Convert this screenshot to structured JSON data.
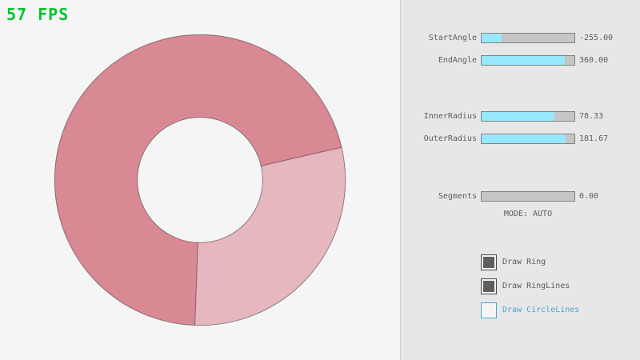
{
  "fps": "57 FPS",
  "colors": {
    "canvas": "#f5f5f5",
    "panel": "#e7e7e7",
    "text": "#5c5c5c",
    "fps": "#00c32c",
    "slider_fill": "#97e8ff",
    "slider_track": "#c5c5c5",
    "slider_border": "#838383",
    "ring_overlap": "#d98994",
    "ring_single": "#e6b7be",
    "ring_line": "#00000066",
    "accent_blue": "#4ba6d5",
    "check_fill": "#5f5f5f",
    "check_border": "#4a4a4a"
  },
  "controls": {
    "sliders": [
      {
        "label": "StartAngle",
        "value": "-255.00",
        "fill": 21.7
      },
      {
        "label": "EndAngle",
        "value": "360.00",
        "fill": 90.0
      },
      {
        "label": "InnerRadius",
        "value": "78.33",
        "fill": 78.3
      },
      {
        "label": "OuterRadius",
        "value": "181.67",
        "fill": 90.8
      },
      {
        "label": "Segments",
        "value": "0.00",
        "fill": 0
      }
    ],
    "mode_text": "MODE: AUTO",
    "checkboxes": [
      {
        "label": "Draw Ring",
        "checked": true
      },
      {
        "label": "Draw RingLines",
        "checked": true
      },
      {
        "label": "Draw CircleLines",
        "checked": false
      }
    ]
  }
}
